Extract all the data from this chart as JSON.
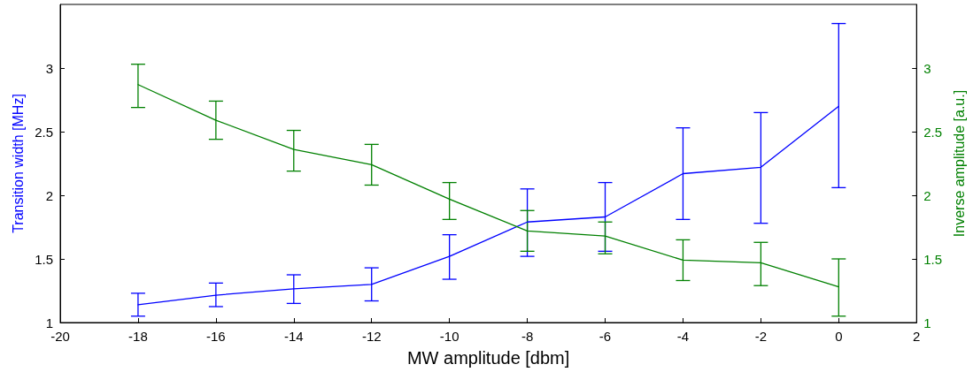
{
  "chart_data": {
    "type": "line",
    "xlabel": "MW amplitude [dbm]",
    "ylabel": "Transition width [MHz]",
    "y2label": "Inverse amplitude [a.u.]",
    "x": [
      -18,
      -16,
      -14,
      -12,
      -10,
      -8,
      -6,
      -4,
      -2,
      0
    ],
    "xlim": [
      -20,
      2
    ],
    "xticks": [
      -20,
      -18,
      -16,
      -14,
      -12,
      -10,
      -8,
      -6,
      -4,
      -2,
      0,
      2
    ],
    "ylim": [
      1,
      3.5
    ],
    "yticks": [
      1,
      1.5,
      2,
      2.5,
      3
    ],
    "y2lim": [
      1,
      3.5
    ],
    "y2ticks": [
      1,
      1.5,
      2,
      2.5,
      3
    ],
    "grid": false,
    "marker": "none",
    "line_style": "solid",
    "series": [
      {
        "color": "#0000ff",
        "values": [
          1.14,
          1.215,
          1.265,
          1.3,
          1.52,
          1.79,
          1.83,
          2.17,
          2.22,
          2.7
        ],
        "errors": [
          [
            1.05,
            1.23
          ],
          [
            1.125,
            1.31
          ],
          [
            1.15,
            1.375
          ],
          [
            1.17,
            1.43
          ],
          [
            1.34,
            1.69
          ],
          [
            1.52,
            2.05
          ],
          [
            1.56,
            2.1
          ],
          [
            1.81,
            2.53
          ],
          [
            1.78,
            2.65
          ],
          [
            2.06,
            3.35
          ]
        ]
      },
      {
        "color": "#008000",
        "axis": "y2",
        "values": [
          2.87,
          2.59,
          2.36,
          2.24,
          1.97,
          1.72,
          1.68,
          1.49,
          1.47,
          1.28
        ],
        "errors": [
          [
            2.69,
            3.03
          ],
          [
            2.44,
            2.74
          ],
          [
            2.19,
            2.51
          ],
          [
            2.08,
            2.4
          ],
          [
            1.81,
            2.1
          ],
          [
            1.56,
            1.88
          ],
          [
            1.54,
            1.79
          ],
          [
            1.33,
            1.65
          ],
          [
            1.29,
            1.63
          ],
          [
            1.05,
            1.5
          ]
        ]
      }
    ]
  }
}
